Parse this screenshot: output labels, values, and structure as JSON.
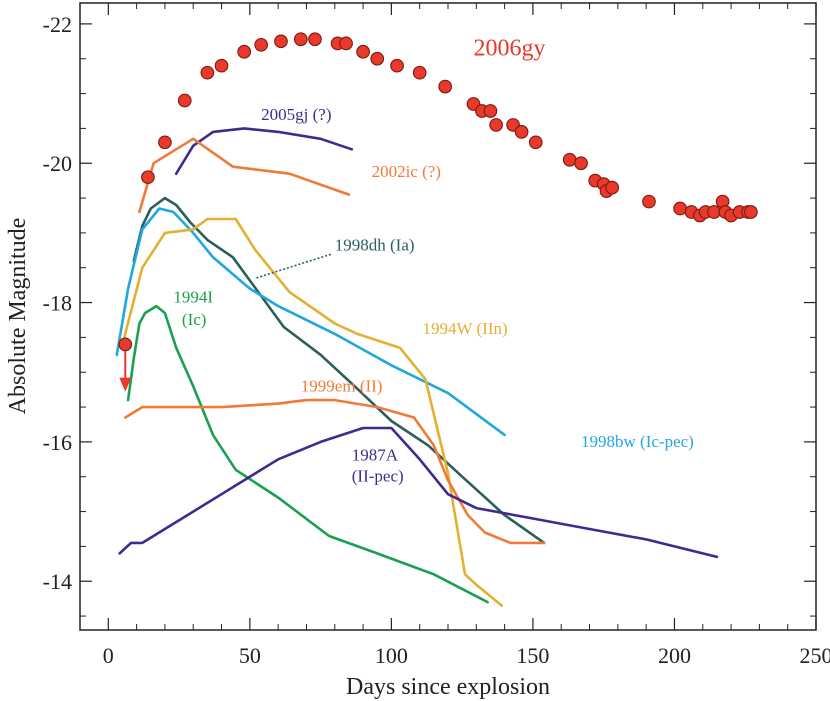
{
  "chart_data": {
    "type": "line",
    "title": "",
    "xlabel": "Days since explosion",
    "ylabel": "Absolute Magnitude",
    "xlim": [
      -10,
      250
    ],
    "ylim": [
      -13.3,
      -22.3
    ],
    "y_inverted": true,
    "grid": false,
    "x_ticks": [
      0,
      50,
      100,
      150,
      200,
      250
    ],
    "x_tick_labels": [
      "0",
      "50",
      "100",
      "150",
      "200",
      "250"
    ],
    "y_ticks": [
      -14,
      -16,
      -18,
      -20,
      -22
    ],
    "y_tick_labels": [
      "-14",
      "-16",
      "-18",
      "-20",
      "-22"
    ],
    "series": [
      {
        "name": "2006gy",
        "kind": "scatter",
        "color": "#e8392b",
        "points": [
          [
            14,
            -19.8
          ],
          [
            20,
            -20.3
          ],
          [
            27,
            -20.9
          ],
          [
            35,
            -21.3
          ],
          [
            40,
            -21.4
          ],
          [
            48,
            -21.6
          ],
          [
            54,
            -21.7
          ],
          [
            61,
            -21.75
          ],
          [
            68,
            -21.78
          ],
          [
            73,
            -21.78
          ],
          [
            81,
            -21.72
          ],
          [
            84,
            -21.72
          ],
          [
            90,
            -21.6
          ],
          [
            95,
            -21.5
          ],
          [
            102,
            -21.4
          ],
          [
            110,
            -21.3
          ],
          [
            119,
            -21.1
          ],
          [
            129,
            -20.85
          ],
          [
            132,
            -20.75
          ],
          [
            135,
            -20.75
          ],
          [
            137,
            -20.55
          ],
          [
            143,
            -20.55
          ],
          [
            146,
            -20.45
          ],
          [
            151,
            -20.3
          ],
          [
            163,
            -20.05
          ],
          [
            167,
            -20.0
          ],
          [
            172,
            -19.75
          ],
          [
            175,
            -19.7
          ],
          [
            176,
            -19.6
          ],
          [
            178,
            -19.65
          ],
          [
            191,
            -19.45
          ],
          [
            202,
            -19.35
          ],
          [
            206,
            -19.3
          ],
          [
            209,
            -19.25
          ],
          [
            211,
            -19.3
          ],
          [
            214,
            -19.3
          ],
          [
            217,
            -19.45
          ],
          [
            218,
            -19.3
          ],
          [
            220,
            -19.25
          ],
          [
            223,
            -19.3
          ],
          [
            226,
            -19.3
          ],
          [
            227,
            -19.3
          ]
        ],
        "upper_limit": {
          "x": 6,
          "y": -17.4,
          "arrow_to": -16.75
        }
      },
      {
        "name": "2005gj (?)",
        "color": "#3f2a8f",
        "points": [
          [
            24,
            -19.85
          ],
          [
            30,
            -20.25
          ],
          [
            37,
            -20.45
          ],
          [
            48,
            -20.5
          ],
          [
            60,
            -20.45
          ],
          [
            75,
            -20.35
          ],
          [
            86,
            -20.2
          ]
        ]
      },
      {
        "name": "2002ic (?)",
        "color": "#ef7a3a",
        "points": [
          [
            11,
            -19.3
          ],
          [
            16,
            -20.0
          ],
          [
            30,
            -20.35
          ],
          [
            44,
            -19.95
          ],
          [
            64,
            -19.85
          ],
          [
            85,
            -19.55
          ]
        ]
      },
      {
        "name": "1998dh (Ia)",
        "color": "#2b5f5c",
        "points": [
          [
            9,
            -18.6
          ],
          [
            12,
            -19.1
          ],
          [
            15,
            -19.35
          ],
          [
            20,
            -19.5
          ],
          [
            24,
            -19.4
          ],
          [
            29,
            -19.15
          ],
          [
            35,
            -18.9
          ],
          [
            44,
            -18.65
          ],
          [
            53,
            -18.15
          ],
          [
            62,
            -17.65
          ],
          [
            75,
            -17.25
          ],
          [
            87,
            -16.8
          ],
          [
            100,
            -16.3
          ],
          [
            113,
            -15.95
          ],
          [
            125,
            -15.5
          ],
          [
            140,
            -14.95
          ],
          [
            154,
            -14.55
          ]
        ]
      },
      {
        "name": "1998bw (Ic-pec)",
        "color": "#21a7e0",
        "points": [
          [
            3,
            -17.25
          ],
          [
            7,
            -18.2
          ],
          [
            12,
            -19.05
          ],
          [
            18,
            -19.35
          ],
          [
            23,
            -19.3
          ],
          [
            30,
            -19.0
          ],
          [
            37,
            -18.65
          ],
          [
            50,
            -18.2
          ],
          [
            60,
            -17.95
          ],
          [
            80,
            -17.55
          ],
          [
            100,
            -17.1
          ],
          [
            120,
            -16.7
          ],
          [
            140,
            -16.1
          ]
        ]
      },
      {
        "name": "1994W (IIn)",
        "color": "#e3b030",
        "points": [
          [
            5,
            -17.4
          ],
          [
            12,
            -18.5
          ],
          [
            20,
            -19.0
          ],
          [
            30,
            -19.05
          ],
          [
            35,
            -19.2
          ],
          [
            45,
            -19.2
          ],
          [
            52,
            -18.75
          ],
          [
            64,
            -18.15
          ],
          [
            80,
            -17.7
          ],
          [
            88,
            -17.55
          ],
          [
            103,
            -17.35
          ],
          [
            112,
            -16.9
          ],
          [
            120,
            -15.55
          ],
          [
            126,
            -14.1
          ],
          [
            130,
            -13.95
          ],
          [
            139,
            -13.65
          ]
        ]
      },
      {
        "name": "1994I (Ic)",
        "color": "#1aa050",
        "points": [
          [
            7,
            -16.6
          ],
          [
            9,
            -17.2
          ],
          [
            11,
            -17.7
          ],
          [
            13,
            -17.85
          ],
          [
            17,
            -17.95
          ],
          [
            20,
            -17.85
          ],
          [
            24,
            -17.35
          ],
          [
            30,
            -16.8
          ],
          [
            37,
            -16.1
          ],
          [
            45,
            -15.6
          ],
          [
            60,
            -15.2
          ],
          [
            78,
            -14.65
          ],
          [
            95,
            -14.4
          ],
          [
            115,
            -14.1
          ],
          [
            134,
            -13.7
          ]
        ]
      },
      {
        "name": "1999em (II)",
        "color": "#ef7a3a",
        "points": [
          [
            6,
            -16.35
          ],
          [
            12,
            -16.5
          ],
          [
            20,
            -16.5
          ],
          [
            40,
            -16.5
          ],
          [
            60,
            -16.55
          ],
          [
            70,
            -16.6
          ],
          [
            80,
            -16.6
          ],
          [
            95,
            -16.5
          ],
          [
            108,
            -16.35
          ],
          [
            115,
            -15.95
          ],
          [
            120,
            -15.45
          ],
          [
            127,
            -14.95
          ],
          [
            133,
            -14.7
          ],
          [
            142,
            -14.55
          ],
          [
            154,
            -14.55
          ]
        ]
      },
      {
        "name": "1987A (II-pec)",
        "color": "#3f2a8f",
        "points": [
          [
            4,
            -14.4
          ],
          [
            8,
            -14.55
          ],
          [
            12,
            -14.55
          ],
          [
            20,
            -14.75
          ],
          [
            40,
            -15.25
          ],
          [
            60,
            -15.75
          ],
          [
            75,
            -16.0
          ],
          [
            90,
            -16.2
          ],
          [
            100,
            -16.2
          ],
          [
            110,
            -15.75
          ],
          [
            120,
            -15.25
          ],
          [
            130,
            -15.05
          ],
          [
            150,
            -14.9
          ],
          [
            170,
            -14.75
          ],
          [
            190,
            -14.6
          ],
          [
            215,
            -14.35
          ]
        ]
      }
    ],
    "annotations": [
      {
        "text": "2006gy",
        "color": "#e8392b",
        "x": 129,
        "y": -21.55,
        "size": "large"
      },
      {
        "text": "2005gj (?)",
        "color": "#3f2a8f",
        "x": 54,
        "y": -20.62
      },
      {
        "text": "2002ic (?)",
        "color": "#ef7a3a",
        "x": 93,
        "y": -19.8
      },
      {
        "text": "1998dh (Ia)",
        "color": "#2b5f5c",
        "x": 80,
        "y": -18.75,
        "leader_to": [
          52,
          -18.35
        ]
      },
      {
        "text": "1994I",
        "color": "#1aa050",
        "x": 23,
        "y": -18.0
      },
      {
        "text": "(Ic)",
        "color": "#1aa050",
        "x": 26,
        "y": -17.68
      },
      {
        "text": "1994W (IIn)",
        "color": "#e3b030",
        "x": 111,
        "y": -17.55
      },
      {
        "text": "1999em (II)",
        "color": "#ef7a3a",
        "x": 68,
        "y": -16.72
      },
      {
        "text": "1998bw (Ic-pec)",
        "color": "#21a7e0",
        "x": 167,
        "y": -15.93
      },
      {
        "text": "1987A",
        "color": "#3f2a8f",
        "x": 86,
        "y": -15.73
      },
      {
        "text": "(II-pec)",
        "color": "#3f2a8f",
        "x": 86,
        "y": -15.43
      }
    ]
  }
}
